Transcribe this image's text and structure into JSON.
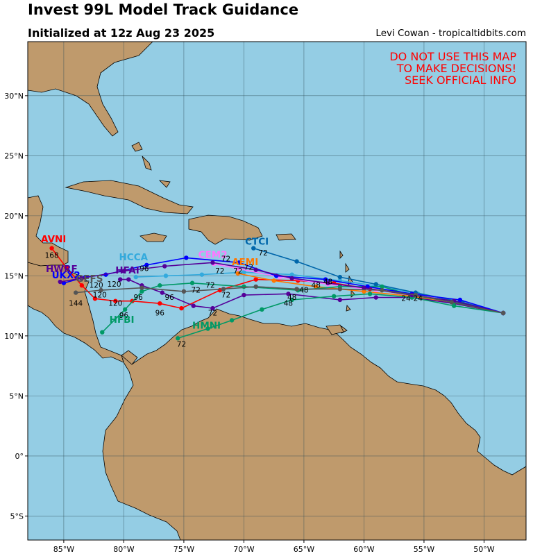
{
  "title": "Invest 99L Model Track Guidance",
  "subtitle": "Initialized at 12z Aug 23 2025",
  "credit": "Levi Cowan - tropicaltidbits.com",
  "warning": [
    "DO NOT USE THIS MAP",
    "TO MAKE DECISIONS!",
    "SEEK OFFICIAL INFO"
  ],
  "colors": {
    "ocean": "#94cde4",
    "land": "#bf9a6c",
    "grid": "#2d4b55"
  },
  "axes": {
    "lon_range": [
      -88,
      -46.5
    ],
    "lat_range": [
      -7,
      34.5
    ],
    "lon_ticks": [
      {
        "v": -85,
        "label": "85°W"
      },
      {
        "v": -80,
        "label": "80°W"
      },
      {
        "v": -75,
        "label": "75°W"
      },
      {
        "v": -70,
        "label": "70°W"
      },
      {
        "v": -65,
        "label": "65°W"
      },
      {
        "v": -60,
        "label": "60°W"
      },
      {
        "v": -55,
        "label": "55°W"
      },
      {
        "v": -50,
        "label": "50°W"
      }
    ],
    "lat_ticks": [
      {
        "v": 30,
        "label": "30°N"
      },
      {
        "v": 25,
        "label": "25°N"
      },
      {
        "v": 20,
        "label": "20°N"
      },
      {
        "v": 15,
        "label": "15°N"
      },
      {
        "v": 10,
        "label": "10°N"
      },
      {
        "v": 5,
        "label": "5°N"
      },
      {
        "v": 0,
        "label": "0°"
      },
      {
        "v": -5,
        "label": "5°S"
      }
    ]
  },
  "tracks": [
    {
      "name": "AVNI",
      "color": "#ff0000",
      "label_at": [
        -86.9,
        17.8
      ],
      "points": [
        [
          -48.4,
          11.9
        ],
        [
          -52.5,
          12.8
        ],
        [
          -56,
          13.4
        ],
        [
          -59.5,
          13.9
        ],
        [
          -62.5,
          14.4
        ],
        [
          -65.5,
          14.6
        ],
        [
          -69,
          14.7
        ],
        [
          -72,
          13.8
        ],
        [
          -75.2,
          12.3
        ],
        [
          -77,
          12.7
        ],
        [
          -79.3,
          12.9
        ],
        [
          -80.7,
          12.9
        ],
        [
          -82.4,
          13.1
        ],
        [
          -83.5,
          14.2
        ],
        [
          -84.8,
          15.7
        ],
        [
          -86,
          17.3
        ]
      ],
      "tau": [
        {
          "t": "24",
          "at": [
            -56.5,
            12.9
          ]
        },
        {
          "t": "48",
          "at": [
            -63,
            14.3
          ]
        },
        {
          "t": "72",
          "at": [
            -71.5,
            13.2
          ]
        },
        {
          "t": "96",
          "at": [
            -77,
            11.7
          ]
        },
        {
          "t": "120",
          "at": [
            -80.7,
            12.5
          ]
        },
        {
          "t": "168",
          "at": [
            -86,
            16.5
          ]
        }
      ]
    },
    {
      "name": "HCCA",
      "color": "#33aadd",
      "label_at": [
        -80.4,
        16.3
      ],
      "points": [
        [
          -48.4,
          11.9
        ],
        [
          -52,
          12.7
        ],
        [
          -55.5,
          13.5
        ],
        [
          -58.5,
          14.1
        ],
        [
          -62,
          14.6
        ],
        [
          -66,
          15.1
        ],
        [
          -70,
          15.3
        ],
        [
          -73.5,
          15.1
        ],
        [
          -76.5,
          15.0
        ],
        [
          -79,
          14.9
        ]
      ],
      "tau": [
        {
          "t": "24",
          "at": [
            -55.5,
            12.9
          ]
        },
        {
          "t": "72",
          "at": [
            -72,
            15.2
          ]
        }
      ]
    },
    {
      "name": "CEM2",
      "color": "#ff77ff",
      "label_at": [
        -73.8,
        16.5
      ],
      "points": [
        [
          -48.4,
          11.9
        ],
        [
          -52.3,
          12.8
        ],
        [
          -55.5,
          13.4
        ],
        [
          -59,
          13.8
        ],
        [
          -63,
          14.3
        ],
        [
          -67,
          14.9
        ],
        [
          -70.5,
          15.6
        ],
        [
          -72.5,
          16.0
        ]
      ],
      "tau": [
        {
          "t": "48",
          "at": [
            -64,
            14
          ]
        },
        {
          "t": "72",
          "at": [
            -69.6,
            15.5
          ]
        }
      ]
    },
    {
      "name": "AEMI",
      "color": "#ff7700",
      "label_at": [
        -71,
        15.9
      ],
      "points": [
        [
          -48.4,
          11.9
        ],
        [
          -52.5,
          12.7
        ],
        [
          -56,
          13.3
        ],
        [
          -60,
          13.7
        ],
        [
          -64,
          14.1
        ],
        [
          -67.5,
          14.6
        ],
        [
          -70.5,
          15.2
        ]
      ],
      "tau": [
        {
          "t": "72",
          "at": [
            -70.5,
            15.2
          ]
        }
      ]
    },
    {
      "name": "CTCI",
      "color": "#0066aa",
      "label_at": [
        -69.9,
        17.6
      ],
      "points": [
        [
          -48.4,
          11.9
        ],
        [
          -51.8,
          12.8
        ],
        [
          -55.7,
          13.6
        ],
        [
          -59,
          14.3
        ],
        [
          -62,
          14.9
        ],
        [
          -65.6,
          16.2
        ],
        [
          -69.2,
          17.3
        ]
      ],
      "tau": [
        {
          "t": "72",
          "at": [
            -68.4,
            16.7
          ]
        }
      ]
    },
    {
      "name": "HFAI",
      "color": "#550099",
      "label_at": [
        -80.7,
        15.2
      ],
      "points": [
        [
          -48.4,
          11.9
        ],
        [
          -52.5,
          12.7
        ],
        [
          -56,
          13.2
        ],
        [
          -59,
          13.2
        ],
        [
          -62,
          13.0
        ],
        [
          -66.3,
          13.5
        ],
        [
          -70,
          13.4
        ],
        [
          -72.6,
          12.3
        ],
        [
          -74.2,
          12.5
        ],
        [
          -76.8,
          13.6
        ],
        [
          -78.5,
          14.2
        ],
        [
          -79.6,
          14.7
        ],
        [
          -80.3,
          14.7
        ]
      ],
      "tau": [
        {
          "t": "48",
          "at": [
            -66,
            13.0
          ]
        },
        {
          "t": "72",
          "at": [
            -72.6,
            11.7
          ]
        },
        {
          "t": "96",
          "at": [
            -76.2,
            13.0
          ]
        },
        {
          "t": "120",
          "at": [
            -80.8,
            14.1
          ]
        }
      ]
    },
    {
      "name": "HMNI",
      "color": "#009966",
      "label_at": [
        -74.3,
        10.6
      ],
      "points": [
        [
          -48.4,
          11.9
        ],
        [
          -52.5,
          12.5
        ],
        [
          -56,
          13.2
        ],
        [
          -59.5,
          13.5
        ],
        [
          -62.5,
          13.3
        ],
        [
          -66,
          13.0
        ],
        [
          -68.5,
          12.2
        ],
        [
          -71,
          11.3
        ],
        [
          -73,
          10.6
        ],
        [
          -75.5,
          9.8
        ]
      ],
      "tau": [
        {
          "t": "48",
          "at": [
            -66.3,
            12.5
          ]
        },
        {
          "t": "72",
          "at": [
            -75.2,
            9.1
          ]
        }
      ]
    },
    {
      "name": "HFBI",
      "color": "#009966",
      "label_at": [
        -81.2,
        11.1
      ],
      "points": [
        [
          -48.4,
          11.9
        ],
        [
          -52.5,
          12.8
        ],
        [
          -56,
          13.4
        ],
        [
          -58.5,
          14.1
        ],
        [
          -62,
          14.1
        ],
        [
          -65.5,
          13.8
        ],
        [
          -70,
          14.1
        ],
        [
          -74.3,
          14.4
        ],
        [
          -77,
          14.2
        ],
        [
          -78.5,
          13.7
        ],
        [
          -79.9,
          12.2
        ],
        [
          -81.8,
          10.3
        ]
      ],
      "tau": [
        {
          "t": "72",
          "at": [
            -72.8,
            14.0
          ]
        },
        {
          "t": "96",
          "at": [
            -80,
            11.5
          ]
        }
      ]
    },
    {
      "name": "UKX2",
      "color": "#0000ff",
      "label_at": [
        -86,
        14.8
      ],
      "points": [
        [
          -48.4,
          11.9
        ],
        [
          -52,
          13.0
        ],
        [
          -56,
          13.5
        ],
        [
          -59.7,
          14.1
        ],
        [
          -63.2,
          14.7
        ],
        [
          -67.3,
          15.0
        ],
        [
          -70.4,
          16.1
        ],
        [
          -74.8,
          16.5
        ],
        [
          -78.1,
          15.9
        ],
        [
          -81.5,
          15.1
        ],
        [
          -83.2,
          14.9
        ],
        [
          -85,
          14.4
        ]
      ],
      "tau": [
        {
          "t": "72",
          "at": [
            -71.5,
            16.2
          ]
        }
      ]
    },
    {
      "name": "HWRF",
      "color": "#550099",
      "label_at": [
        -86.5,
        15.3
      ],
      "points": [
        [
          -48.4,
          11.9
        ],
        [
          -52.5,
          12.9
        ],
        [
          -56,
          13.4
        ],
        [
          -60,
          14.0
        ],
        [
          -63,
          14.4
        ],
        [
          -66,
          14.8
        ],
        [
          -69,
          15.5
        ],
        [
          -72.6,
          16.1
        ],
        [
          -76.6,
          15.8
        ],
        [
          -80,
          15.4
        ],
        [
          -83.5,
          14.8
        ],
        [
          -85.3,
          14.5
        ]
      ],
      "tau": [
        {
          "t": "96",
          "at": [
            -78.3,
            15.4
          ]
        },
        {
          "t": "120",
          "at": [
            -82.3,
            14.0
          ]
        }
      ]
    },
    {
      "name": "GEFS",
      "color": "#555555",
      "label_at": [
        -84,
        14.5
      ],
      "points": [
        [
          -48.4,
          11.9
        ],
        [
          -52.7,
          12.8
        ],
        [
          -55.7,
          13.4
        ],
        [
          -58.5,
          13.8
        ],
        [
          -62,
          13.9
        ],
        [
          -65.6,
          13.9
        ],
        [
          -69,
          14.1
        ],
        [
          -71.7,
          13.9
        ],
        [
          -75,
          13.7
        ],
        [
          -78.5,
          14.0
        ],
        [
          -81.9,
          13.8
        ],
        [
          -84,
          13.6
        ]
      ],
      "tau": [
        {
          "t": "48",
          "at": [
            -65,
            13.6
          ]
        },
        {
          "t": "72",
          "at": [
            -74,
            13.6
          ]
        },
        {
          "t": "96",
          "at": [
            -78.8,
            13.0
          ]
        },
        {
          "t": "120",
          "at": [
            -82,
            13.2
          ]
        },
        {
          "t": "144",
          "at": [
            -84,
            12.5
          ]
        }
      ]
    }
  ]
}
